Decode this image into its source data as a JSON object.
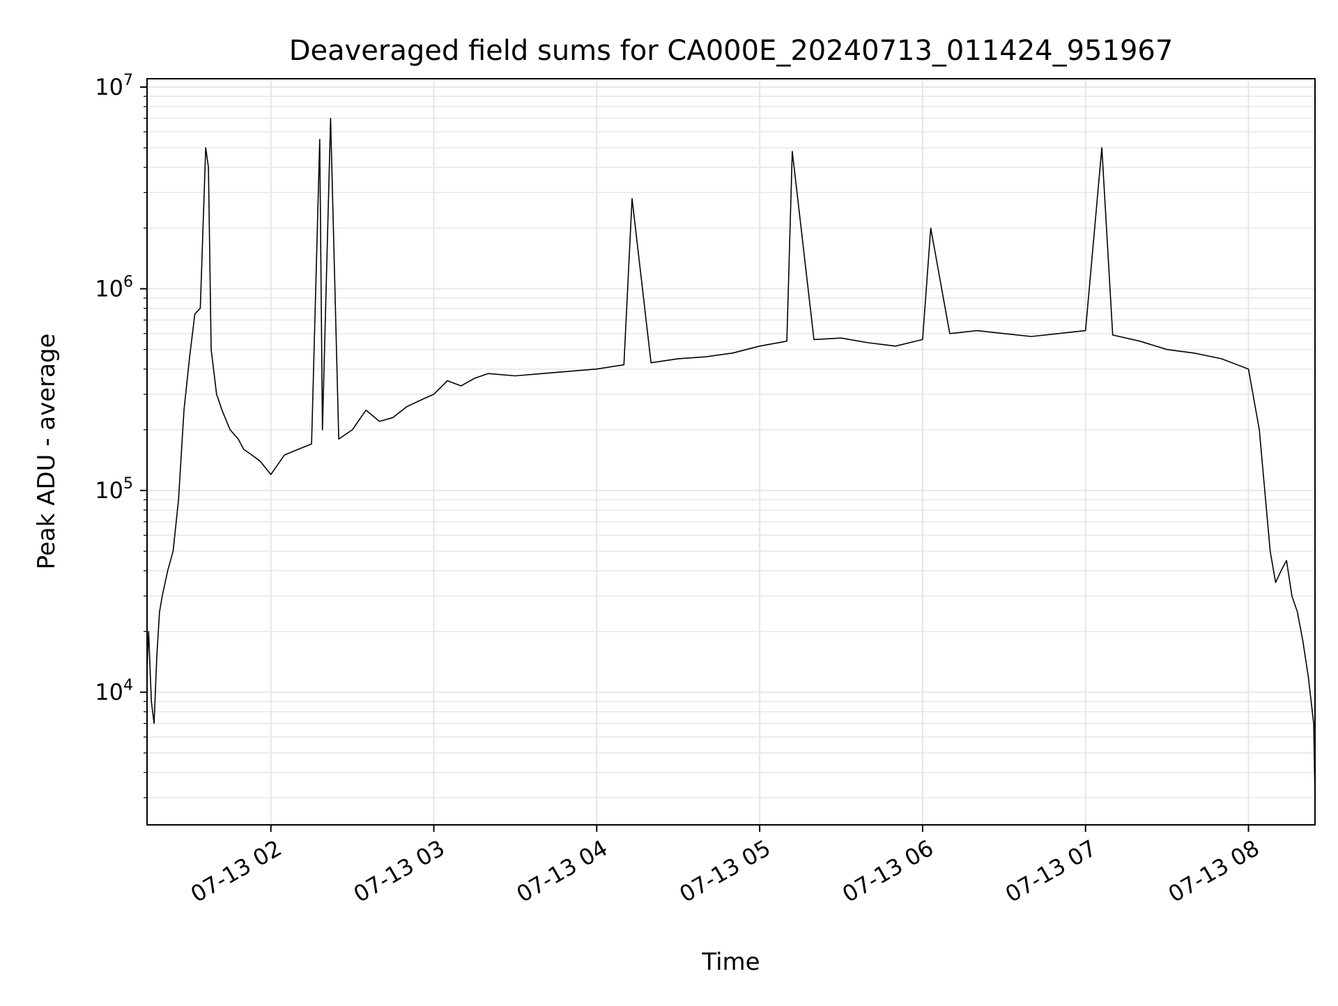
{
  "chart_data": {
    "type": "line",
    "title": "Deaveraged field sums for CA000E_20240713_011424_951967",
    "xlabel": "Time",
    "ylabel": "Peak ADU - average",
    "yscale": "log",
    "ylim": [
      2200,
      11000000
    ],
    "xlim": [
      "2024-07-13 01:14:24",
      "2024-07-13 08:24:30"
    ],
    "grid": true,
    "legend": "none",
    "line_color": "#000000",
    "grid_color": "#e6e6e6",
    "x_ticks": [
      {
        "value": "2024-07-13 02:00",
        "label": "07-13 02"
      },
      {
        "value": "2024-07-13 03:00",
        "label": "07-13 03"
      },
      {
        "value": "2024-07-13 04:00",
        "label": "07-13 04"
      },
      {
        "value": "2024-07-13 05:00",
        "label": "07-13 05"
      },
      {
        "value": "2024-07-13 06:00",
        "label": "07-13 06"
      },
      {
        "value": "2024-07-13 07:00",
        "label": "07-13 07"
      },
      {
        "value": "2024-07-13 08:00",
        "label": "07-13 08"
      }
    ],
    "y_ticks": [
      {
        "value": 10000,
        "base": "10",
        "exp": "4"
      },
      {
        "value": 100000,
        "base": "10",
        "exp": "5"
      },
      {
        "value": 1000000,
        "base": "10",
        "exp": "6"
      },
      {
        "value": 10000000,
        "base": "10",
        "exp": "7"
      }
    ],
    "series": [
      {
        "x": [
          "2024-07-13 01:14:24",
          "2024-07-13 01:15:00",
          "2024-07-13 01:16:00",
          "2024-07-13 01:17:00",
          "2024-07-13 01:18:00",
          "2024-07-13 01:19:00",
          "2024-07-13 01:20:00",
          "2024-07-13 01:22:00",
          "2024-07-13 01:24:00",
          "2024-07-13 01:26:00",
          "2024-07-13 01:28:00",
          "2024-07-13 01:30:00",
          "2024-07-13 01:32:00",
          "2024-07-13 01:34:00",
          "2024-07-13 01:36:00",
          "2024-07-13 01:37:00",
          "2024-07-13 01:38:00",
          "2024-07-13 01:40:00",
          "2024-07-13 01:42:00",
          "2024-07-13 01:45:00",
          "2024-07-13 01:48:00",
          "2024-07-13 01:50:00",
          "2024-07-13 01:53:00",
          "2024-07-13 01:56:00",
          "2024-07-13 02:00:00",
          "2024-07-13 02:05:00",
          "2024-07-13 02:10:00",
          "2024-07-13 02:15:00",
          "2024-07-13 02:18:00",
          "2024-07-13 02:19:00",
          "2024-07-13 02:22:00",
          "2024-07-13 02:25:00",
          "2024-07-13 02:30:00",
          "2024-07-13 02:35:00",
          "2024-07-13 02:40:00",
          "2024-07-13 02:45:00",
          "2024-07-13 02:50:00",
          "2024-07-13 02:55:00",
          "2024-07-13 03:00:00",
          "2024-07-13 03:05:00",
          "2024-07-13 03:10:00",
          "2024-07-13 03:15:00",
          "2024-07-13 03:20:00",
          "2024-07-13 03:30:00",
          "2024-07-13 03:40:00",
          "2024-07-13 03:50:00",
          "2024-07-13 04:00:00",
          "2024-07-13 04:10:00",
          "2024-07-13 04:13:00",
          "2024-07-13 04:20:00",
          "2024-07-13 04:30:00",
          "2024-07-13 04:40:00",
          "2024-07-13 04:50:00",
          "2024-07-13 05:00:00",
          "2024-07-13 05:10:00",
          "2024-07-13 05:12:00",
          "2024-07-13 05:20:00",
          "2024-07-13 05:30:00",
          "2024-07-13 05:40:00",
          "2024-07-13 05:50:00",
          "2024-07-13 06:00:00",
          "2024-07-13 06:03:00",
          "2024-07-13 06:10:00",
          "2024-07-13 06:20:00",
          "2024-07-13 06:30:00",
          "2024-07-13 06:40:00",
          "2024-07-13 06:50:00",
          "2024-07-13 07:00:00",
          "2024-07-13 07:06:00",
          "2024-07-13 07:10:00",
          "2024-07-13 07:20:00",
          "2024-07-13 07:30:00",
          "2024-07-13 07:40:00",
          "2024-07-13 07:50:00",
          "2024-07-13 08:00:00",
          "2024-07-13 08:04:00",
          "2024-07-13 08:06:00",
          "2024-07-13 08:08:00",
          "2024-07-13 08:10:00",
          "2024-07-13 08:12:00",
          "2024-07-13 08:14:00",
          "2024-07-13 08:16:00",
          "2024-07-13 08:18:00",
          "2024-07-13 08:20:00",
          "2024-07-13 08:22:00",
          "2024-07-13 08:24:00",
          "2024-07-13 08:24:30"
        ],
        "values": [
          13000,
          20000,
          9000,
          7000,
          15000,
          25000,
          30000,
          40000,
          50000,
          90000,
          250000,
          450000,
          750000,
          800000,
          5000000,
          4000000,
          500000,
          300000,
          250000,
          200000,
          180000,
          160000,
          150000,
          140000,
          120000,
          150000,
          160000,
          170000,
          5500000,
          200000,
          7000000,
          180000,
          200000,
          250000,
          220000,
          230000,
          260000,
          280000,
          300000,
          350000,
          330000,
          360000,
          380000,
          370000,
          380000,
          390000,
          400000,
          420000,
          2800000,
          430000,
          450000,
          460000,
          480000,
          520000,
          550000,
          4800000,
          560000,
          570000,
          540000,
          520000,
          560000,
          2000000,
          600000,
          620000,
          600000,
          580000,
          600000,
          620000,
          5000000,
          590000,
          550000,
          500000,
          480000,
          450000,
          400000,
          200000,
          100000,
          50000,
          35000,
          40000,
          45000,
          30000,
          25000,
          18000,
          12000,
          7000,
          3000
        ]
      }
    ]
  }
}
